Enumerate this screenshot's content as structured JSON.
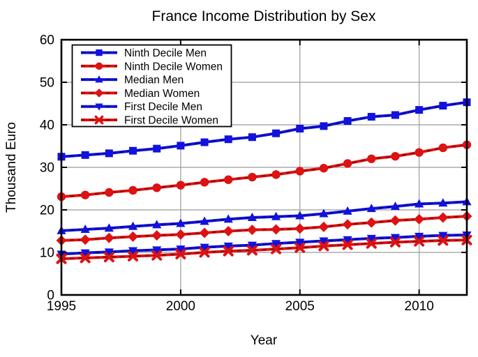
{
  "chart_data": {
    "type": "line",
    "title": "France Income Distribution by Sex",
    "xlabel": "Year",
    "ylabel": "Thousand Euro",
    "xlim": [
      1995,
      2012
    ],
    "ylim": [
      0,
      60
    ],
    "x_ticks": [
      1995,
      2000,
      2005,
      2010
    ],
    "y_ticks": [
      0,
      10,
      20,
      30,
      40,
      50,
      60
    ],
    "grid": true,
    "legend_position": "top-left",
    "colors": {
      "men_line": "#1212dd",
      "men_dash": "#000080",
      "women_line": "#dd1212",
      "women_dash": "#800000",
      "gridline": "#9b9b9b",
      "axis": "#000000",
      "background": "#ffffff"
    },
    "x": [
      1995,
      1996,
      1997,
      1998,
      1999,
      2000,
      2001,
      2002,
      2003,
      2004,
      2005,
      2006,
      2007,
      2008,
      2009,
      2010,
      2011,
      2012
    ],
    "series": [
      {
        "name": "Ninth Decile Men",
        "group": "men",
        "marker": "square",
        "values": [
          32.5,
          32.9,
          33.3,
          33.9,
          34.4,
          35.1,
          35.9,
          36.6,
          37.1,
          38.0,
          39.1,
          39.7,
          40.9,
          41.9,
          42.3,
          43.5,
          44.5,
          45.3
        ]
      },
      {
        "name": "Ninth Decile Women",
        "group": "women",
        "marker": "circle",
        "values": [
          23.1,
          23.5,
          24.1,
          24.6,
          25.2,
          25.8,
          26.5,
          27.1,
          27.7,
          28.3,
          29.1,
          29.8,
          30.9,
          32.0,
          32.6,
          33.5,
          34.6,
          35.3
        ]
      },
      {
        "name": "Median Men",
        "group": "men",
        "marker": "triangle-up",
        "values": [
          15.1,
          15.4,
          15.7,
          16.1,
          16.5,
          16.8,
          17.3,
          17.8,
          18.2,
          18.4,
          18.6,
          19.1,
          19.7,
          20.3,
          20.8,
          21.4,
          21.6,
          21.9
        ]
      },
      {
        "name": "Median Women",
        "group": "women",
        "marker": "diamond",
        "values": [
          12.8,
          13.0,
          13.4,
          13.7,
          14.0,
          14.2,
          14.6,
          15.0,
          15.3,
          15.4,
          15.6,
          16.0,
          16.6,
          17.0,
          17.5,
          17.8,
          18.2,
          18.5
        ]
      },
      {
        "name": "First Decile Men",
        "group": "men",
        "marker": "triangle-down",
        "values": [
          9.6,
          9.9,
          10.1,
          10.4,
          10.6,
          10.8,
          11.2,
          11.5,
          11.7,
          12.1,
          12.4,
          12.7,
          13.0,
          13.3,
          13.5,
          13.8,
          14.0,
          14.1
        ]
      },
      {
        "name": "First Decile Women",
        "group": "women",
        "marker": "x",
        "values": [
          8.5,
          8.7,
          8.9,
          9.1,
          9.3,
          9.6,
          10.0,
          10.3,
          10.5,
          10.8,
          11.1,
          11.5,
          11.8,
          12.1,
          12.4,
          12.6,
          12.8,
          12.9
        ]
      }
    ]
  }
}
